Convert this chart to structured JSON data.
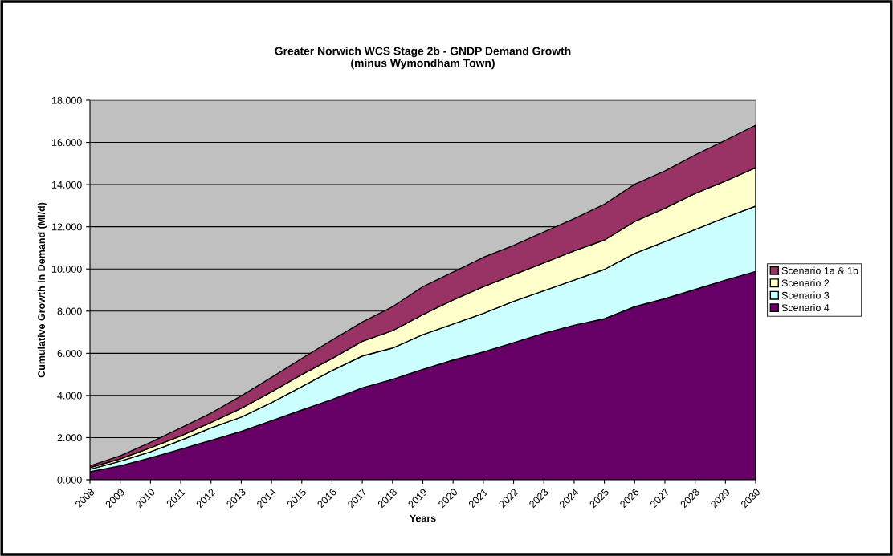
{
  "chart_data": {
    "type": "area",
    "stacked": true,
    "title": "Greater Norwich WCS Stage 2b - GNDP Demand Growth\n(minus Wymondham Town)",
    "xlabel": "Years",
    "ylabel": "Cumulative Growth in Demand (Ml/d)",
    "categories": [
      "2008",
      "2009",
      "2010",
      "2011",
      "2012",
      "2013",
      "2014",
      "2015",
      "2016",
      "2017",
      "2018",
      "2019",
      "2020",
      "2021",
      "2022",
      "2023",
      "2024",
      "2025",
      "2026",
      "2027",
      "2028",
      "2029",
      "2030"
    ],
    "series": [
      {
        "name": "Scenario 4",
        "color": "#660066",
        "values": [
          0.38,
          0.66,
          1.04,
          1.45,
          1.87,
          2.3,
          2.8,
          3.31,
          3.81,
          4.36,
          4.76,
          5.24,
          5.68,
          6.06,
          6.5,
          6.95,
          7.33,
          7.64,
          8.21,
          8.59,
          9.03,
          9.47,
          9.88
        ]
      },
      {
        "name": "Scenario 3",
        "color": "#ccffff",
        "values": [
          0.12,
          0.22,
          0.29,
          0.42,
          0.59,
          0.67,
          0.86,
          1.11,
          1.37,
          1.51,
          1.49,
          1.64,
          1.71,
          1.83,
          1.96,
          2.02,
          2.14,
          2.34,
          2.53,
          2.71,
          2.84,
          2.97,
          3.1
        ]
      },
      {
        "name": "Scenario 2",
        "color": "#ffffcc",
        "values": [
          0.08,
          0.11,
          0.19,
          0.21,
          0.26,
          0.42,
          0.51,
          0.57,
          0.57,
          0.7,
          0.82,
          0.95,
          1.14,
          1.27,
          1.27,
          1.32,
          1.39,
          1.39,
          1.51,
          1.58,
          1.71,
          1.73,
          1.82
        ]
      },
      {
        "name": "Scenario 1a & 1b",
        "color": "#993366",
        "values": [
          0.08,
          0.15,
          0.25,
          0.38,
          0.44,
          0.59,
          0.69,
          0.76,
          0.88,
          0.91,
          1.14,
          1.33,
          1.32,
          1.39,
          1.39,
          1.46,
          1.52,
          1.7,
          1.77,
          1.77,
          1.83,
          1.93,
          2.02
        ]
      }
    ],
    "ylim": [
      0,
      18
    ],
    "yticks": [
      {
        "value": 0,
        "label": "0.000"
      },
      {
        "value": 2,
        "label": "2.000"
      },
      {
        "value": 4,
        "label": "4.000"
      },
      {
        "value": 6,
        "label": "6.000"
      },
      {
        "value": 8,
        "label": "8.000"
      },
      {
        "value": 10,
        "label": "10.000"
      },
      {
        "value": 12,
        "label": "12.000"
      },
      {
        "value": 14,
        "label": "14.000"
      },
      {
        "value": 16,
        "label": "16.000"
      },
      {
        "value": 18,
        "label": "18.000"
      }
    ],
    "grid": "y",
    "legend": "right"
  }
}
